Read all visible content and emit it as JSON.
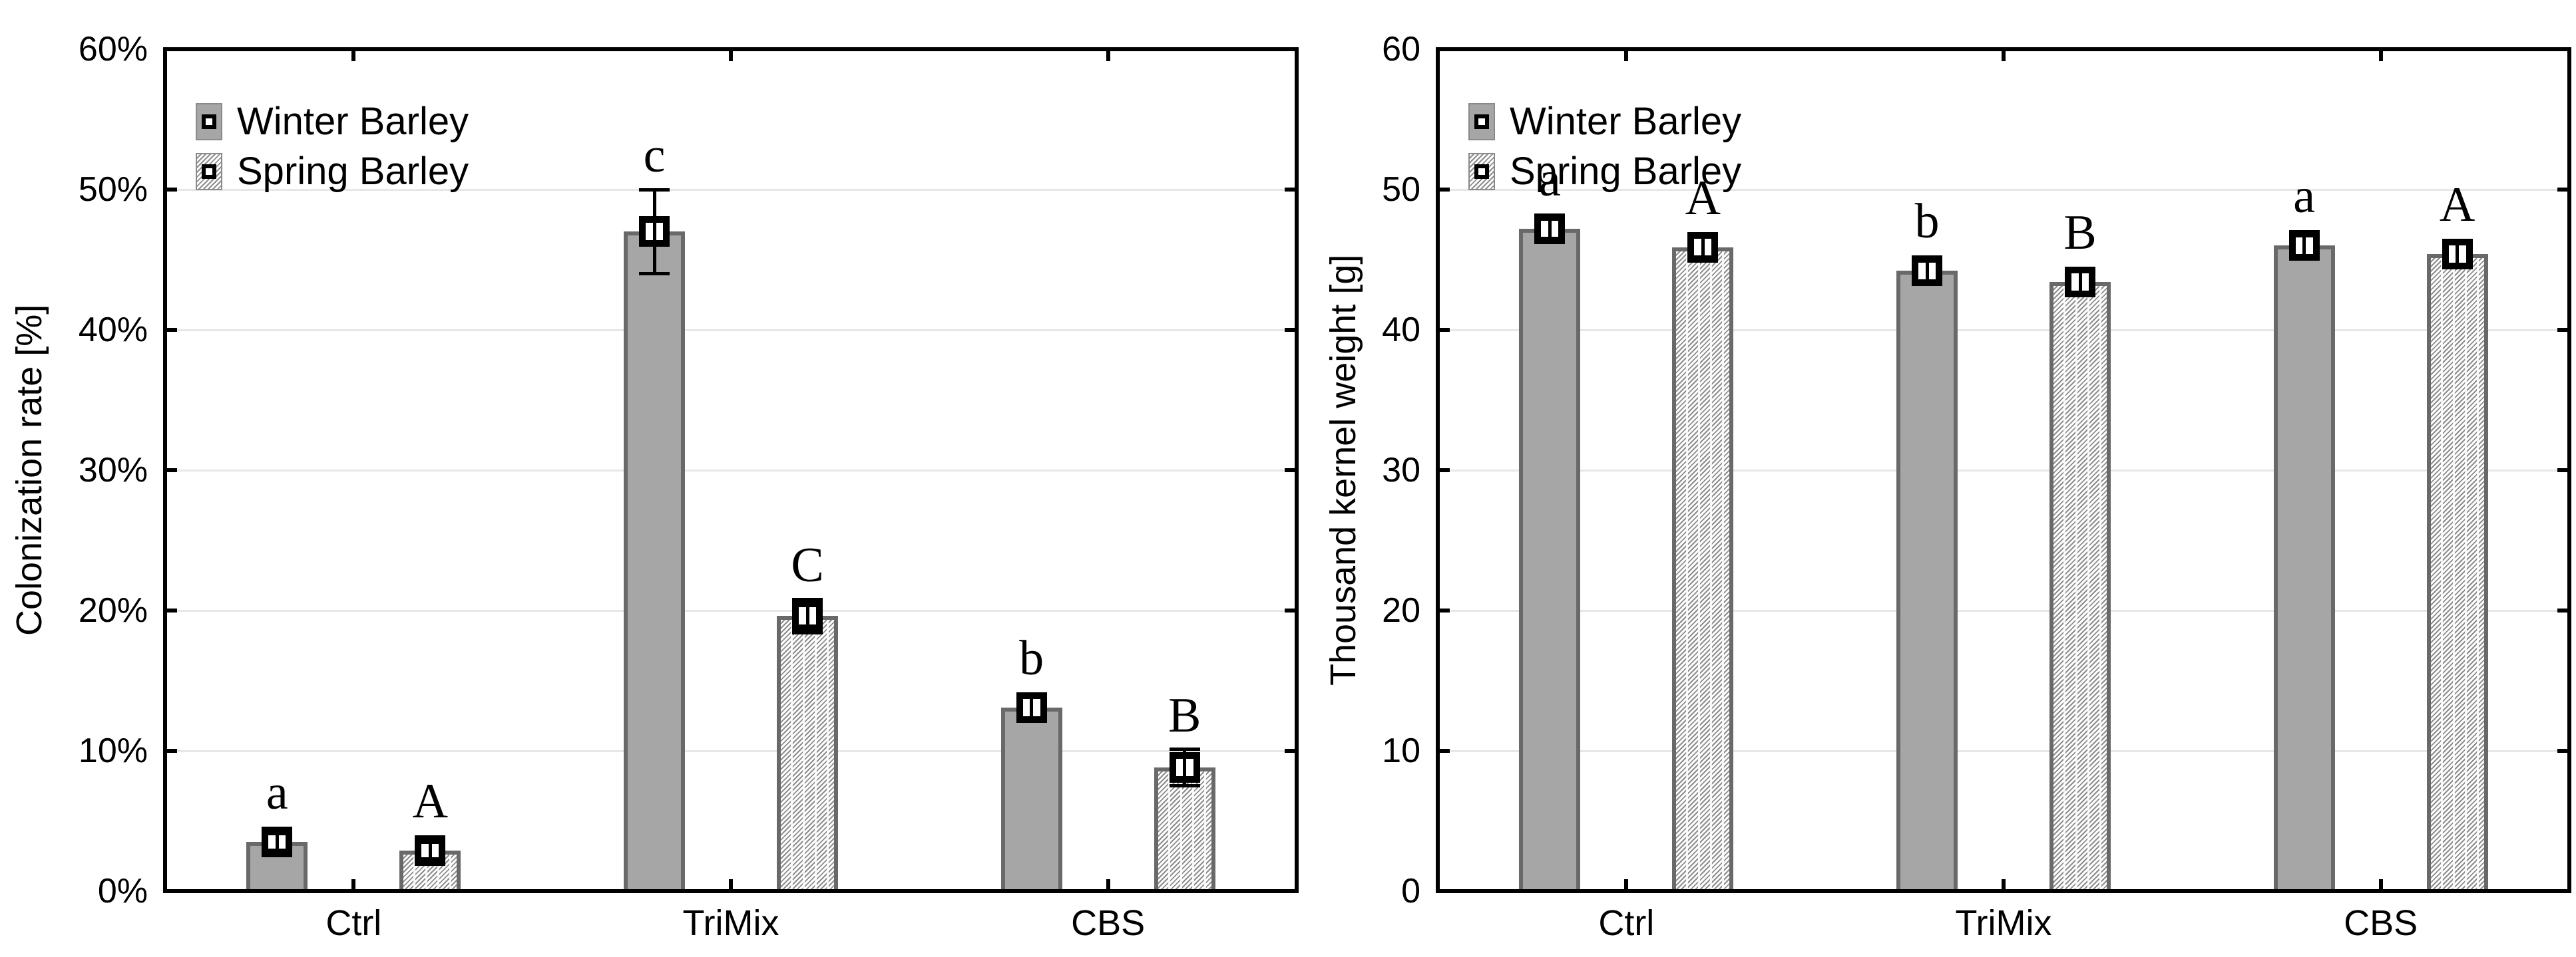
{
  "colors": {
    "winter_fill": "#a6a6a6",
    "bar_border": "#696969",
    "hatch_line": "#8c8c8c",
    "gridline": "#e7e7e7",
    "axis": "#000000",
    "marker_fill": "#ffffff",
    "background": "#ffffff"
  },
  "legend": {
    "winter_label": "Winter Barley",
    "spring_label": "Spring Barley"
  },
  "chart_data": [
    {
      "type": "bar",
      "panel": "left",
      "title": "",
      "xlabel": "",
      "ylabel": "Colonization rate [%]",
      "ylim": [
        0,
        60
      ],
      "yticks": [
        "0%",
        "10%",
        "20%",
        "30%",
        "40%",
        "50%",
        "60%"
      ],
      "grid": true,
      "legend_position": "top-left-inside",
      "legend_entries": [
        "Winter Barley",
        "Spring Barley"
      ],
      "categories": [
        "Ctrl",
        "TriMix",
        "CBS"
      ],
      "series": [
        {
          "name": "Winter Barley",
          "style": "solid-gray",
          "values": [
            3.5,
            47.0,
            13.1
          ],
          "errors": [
            0.6,
            3.0,
            0.9
          ],
          "letters": [
            "a",
            "c",
            "b"
          ]
        },
        {
          "name": "Spring Barley",
          "style": "diagonal-hatch",
          "values": [
            2.9,
            19.6,
            8.8
          ],
          "errors": [
            0.6,
            1.2,
            1.3
          ],
          "letters": [
            "A",
            "C",
            "B"
          ]
        }
      ]
    },
    {
      "type": "bar",
      "panel": "right",
      "title": "",
      "xlabel": "",
      "ylabel": "Thousand kernel weight [g]",
      "ylim": [
        0,
        60
      ],
      "yticks": [
        "0",
        "10",
        "20",
        "30",
        "40",
        "50",
        "60"
      ],
      "grid": true,
      "legend_position": "top-left-inside",
      "legend_entries": [
        "Winter Barley",
        "Spring Barley"
      ],
      "categories": [
        "Ctrl",
        "TriMix",
        "CBS"
      ],
      "series": [
        {
          "name": "Winter Barley",
          "style": "solid-gray",
          "values": [
            47.2,
            44.2,
            46.0
          ],
          "errors": [
            0.7,
            0.7,
            0.7
          ],
          "letters": [
            "a",
            "b",
            "a"
          ]
        },
        {
          "name": "Spring Barley",
          "style": "diagonal-hatch",
          "values": [
            45.9,
            43.4,
            45.4
          ],
          "errors": [
            0.7,
            0.9,
            0.8
          ],
          "letters": [
            "A",
            "B",
            "A"
          ]
        }
      ]
    }
  ]
}
